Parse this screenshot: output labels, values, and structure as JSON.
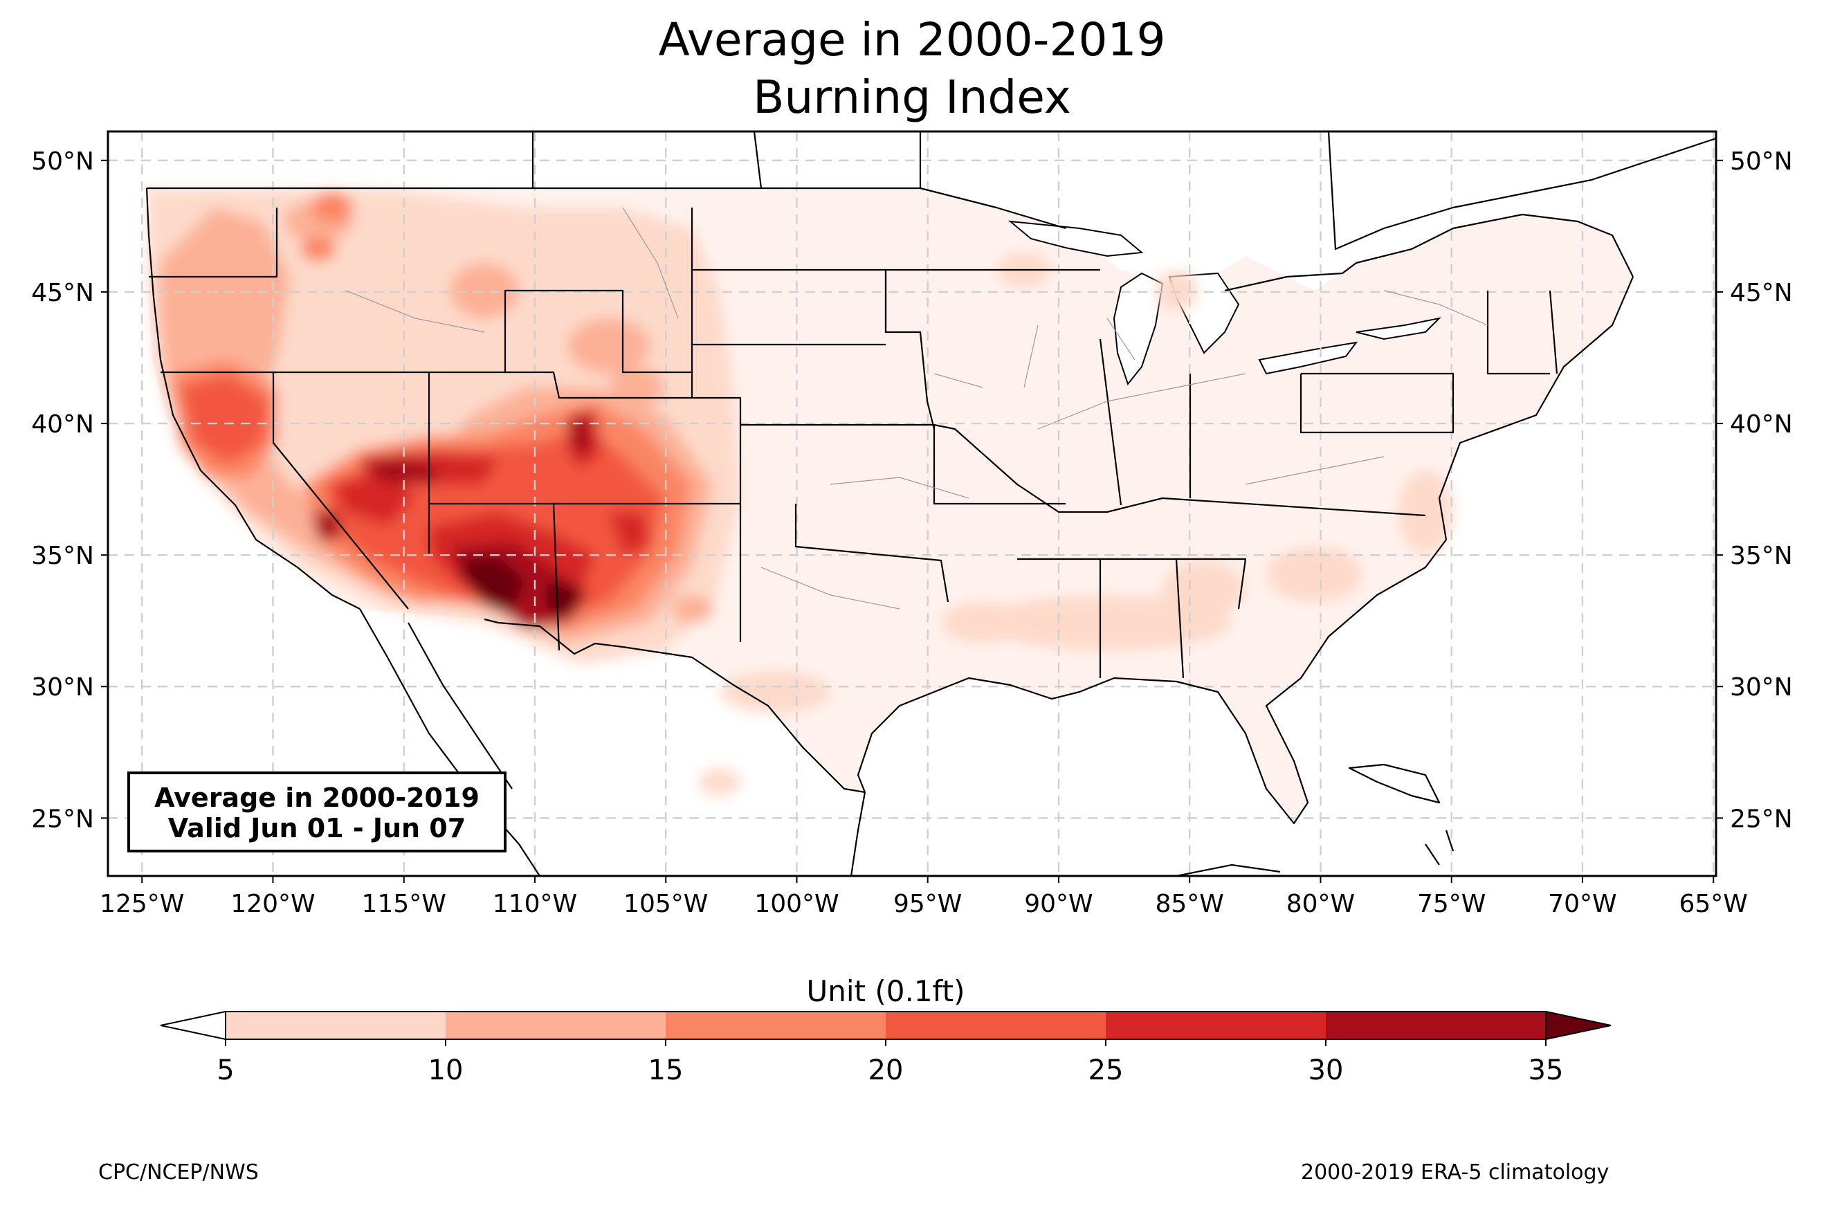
{
  "title": {
    "line1": "Average in 2000-2019",
    "line2": "Burning Index"
  },
  "map": {
    "region": "Contiguous United States",
    "lon_range": [
      -126.3,
      -64.9
    ],
    "lat_range": [
      22.8,
      51.1
    ],
    "lat_ticks": [
      "25°N",
      "30°N",
      "35°N",
      "40°N",
      "45°N",
      "50°N"
    ],
    "lat_tick_values": [
      25,
      30,
      35,
      40,
      45,
      50
    ],
    "lon_ticks": [
      "125°W",
      "120°W",
      "115°W",
      "110°W",
      "105°W",
      "100°W",
      "95°W",
      "90°W",
      "85°W",
      "80°W",
      "75°W",
      "70°W",
      "65°W"
    ],
    "lon_tick_values": [
      -125,
      -120,
      -115,
      -110,
      -105,
      -100,
      -95,
      -90,
      -85,
      -80,
      -75,
      -70,
      -65
    ],
    "gridlines": true,
    "highest_values_region": "Southwest (Arizona, New Mexico, Utah, southern Nevada)"
  },
  "validity_box": {
    "line1": "Average in 2000-2019",
    "line2": "Valid Jun 01 - Jun 07"
  },
  "colorbar": {
    "label": "Unit (0.1ft)",
    "ticks": [
      "5",
      "10",
      "15",
      "20",
      "25",
      "30",
      "35"
    ],
    "levels": [
      5,
      10,
      15,
      20,
      25,
      30,
      35
    ],
    "colors": [
      "#fdd8c9",
      "#fcb096",
      "#fa8564",
      "#f2573f",
      "#d72627",
      "#a80f1a",
      "#68000d"
    ],
    "under_color": "#ffffff",
    "over_color": "#68000d",
    "extend": "both"
  },
  "footer": {
    "left": "CPC/NCEP/NWS",
    "right": "2000-2019 ERA-5 climatology"
  }
}
